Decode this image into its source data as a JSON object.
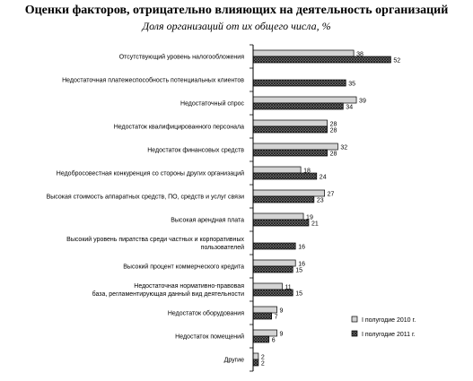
{
  "chart_data": {
    "type": "bar",
    "orientation": "horizontal",
    "title": "Оценки факторов, отрицательно влияющих на деятельность организаций",
    "subtitle": "Доля организаций от их общего числа, %",
    "categories": [
      [
        "Отсутствующий уровень налогообложения"
      ],
      [
        "Недостаточная платежеспособность потенциальных клиентов"
      ],
      [
        "Недостаточный спрос"
      ],
      [
        "Недостаток квалифицированного персонала"
      ],
      [
        "Недостаток финансовых средств"
      ],
      [
        "Недобросовестная конкуренция со стороны других организаций"
      ],
      [
        "Высокая стоимость аппаратных средств, ПО, средств и услуг связи"
      ],
      [
        "Высокая арендная плата"
      ],
      [
        "Высокий уровень пиратства среди частных и корпоративных",
        "пользователей"
      ],
      [
        "Высокий процент коммерческого кредита"
      ],
      [
        "Недостаточная нормативно-правовая",
        "база, регламентирующая данный вид деятельности"
      ],
      [
        "Недостаток оборудования"
      ],
      [
        "Недостаток помещений"
      ],
      [
        "Другие"
      ]
    ],
    "series": [
      {
        "name": "I полугодие 2010 г.",
        "values": [
          38,
          null,
          39,
          28,
          32,
          18,
          27,
          19,
          null,
          16,
          11,
          9,
          9,
          2
        ],
        "color": "#d4d4d4",
        "pattern": "solid"
      },
      {
        "name": "I полугодие 2011 г.",
        "values": [
          52,
          35,
          34,
          28,
          28,
          24,
          23,
          21,
          16,
          15,
          15,
          7,
          6,
          2
        ],
        "color": "#555555",
        "pattern": "crosshatch"
      }
    ],
    "xlim": [
      0,
      60
    ],
    "grid": false,
    "legend": "bottom-right"
  }
}
